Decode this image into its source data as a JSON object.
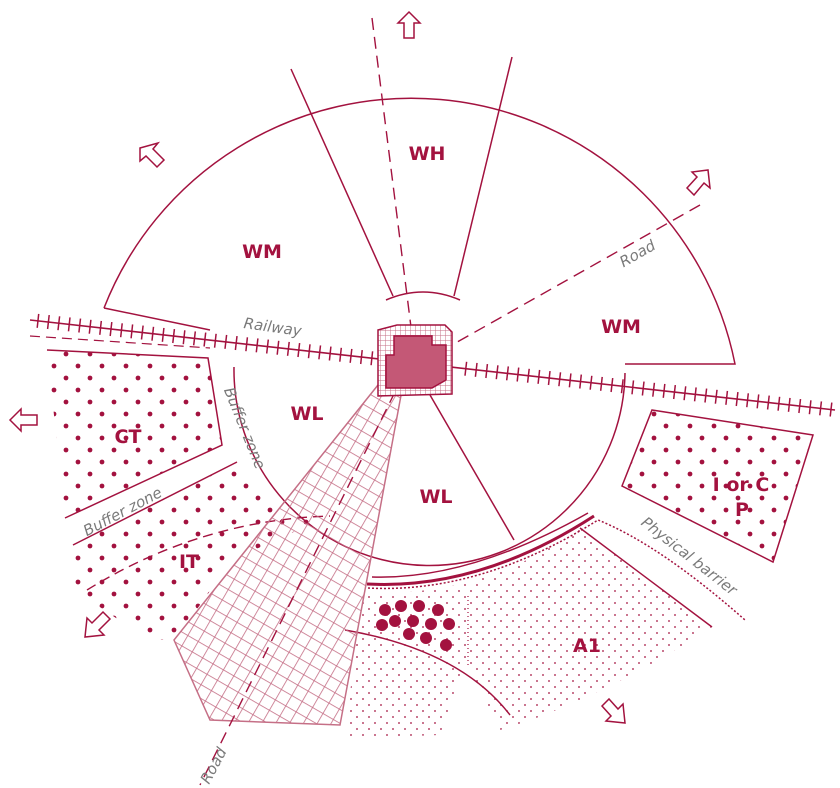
{
  "colors": {
    "primary": "#a3123f",
    "hatch": "#c56f86",
    "note_text": "#7a7a7a",
    "dot_fill": "#a3123f",
    "background": "#ffffff"
  },
  "zones": {
    "wh": "WH",
    "wm_left": "WM",
    "wm_right": "WM",
    "wl_left": "WL",
    "wl_right": "WL",
    "ct": "CT",
    "it": "IT",
    "i_or_c": "I or C",
    "p": "P",
    "a1": "A1"
  },
  "notes": {
    "railway": "Railway",
    "road_upper": "Road",
    "road_lower": "Road",
    "buffer_zone_vertical": "Buffer zone",
    "buffer_zone_lower": "Buffer zone",
    "physical_barrier": "Physical barrier"
  },
  "icons": {
    "arrow": "hollow-arrow-icon",
    "source": "source-building-icon"
  }
}
